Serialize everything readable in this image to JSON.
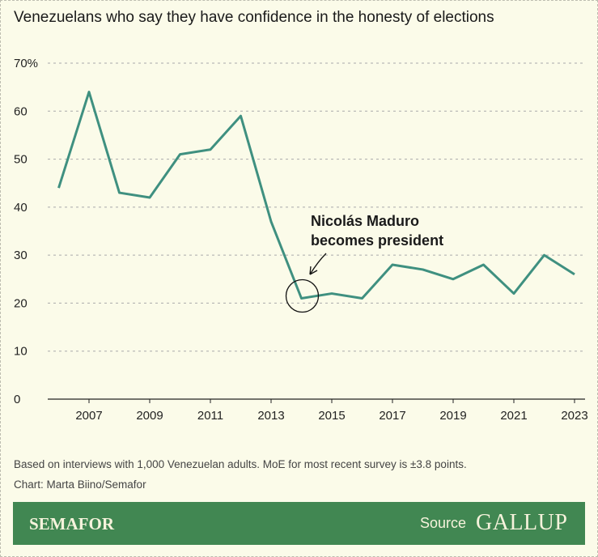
{
  "title": "Venezuelans who say they have confidence in the honesty of elections",
  "chart_data": {
    "type": "line",
    "title": "Venezuelans who say they have confidence in the honesty of elections",
    "x": [
      2006,
      2007,
      2008,
      2009,
      2010,
      2011,
      2012,
      2013,
      2014,
      2015,
      2016,
      2017,
      2018,
      2019,
      2020,
      2021,
      2022,
      2023
    ],
    "values": [
      44,
      64,
      43,
      42,
      51,
      52,
      59,
      37,
      21,
      22,
      21,
      28,
      27,
      25,
      28,
      22,
      30,
      26
    ],
    "xticks": [
      "2007",
      "2009",
      "2011",
      "2013",
      "2015",
      "2017",
      "2019",
      "2021",
      "2023"
    ],
    "yticks": [
      "0",
      "10",
      "20",
      "30",
      "40",
      "50",
      "60",
      "70%"
    ],
    "ylim": [
      0,
      70
    ],
    "grid": true,
    "line_color": "#3f9080",
    "annotation": {
      "text_line1": "Nicolás Maduro",
      "text_line2": "becomes president",
      "x": 2014,
      "y": 21
    }
  },
  "note": "Based on interviews with 1,000 Venezuelan adults. MoE for most recent survey is ±3.8 points.",
  "credit": "Chart: Marta Biino/Semafor",
  "footer": {
    "brand": "SEMAFOR",
    "source_label": "Source",
    "source": "GALLUP",
    "color": "#418752"
  }
}
